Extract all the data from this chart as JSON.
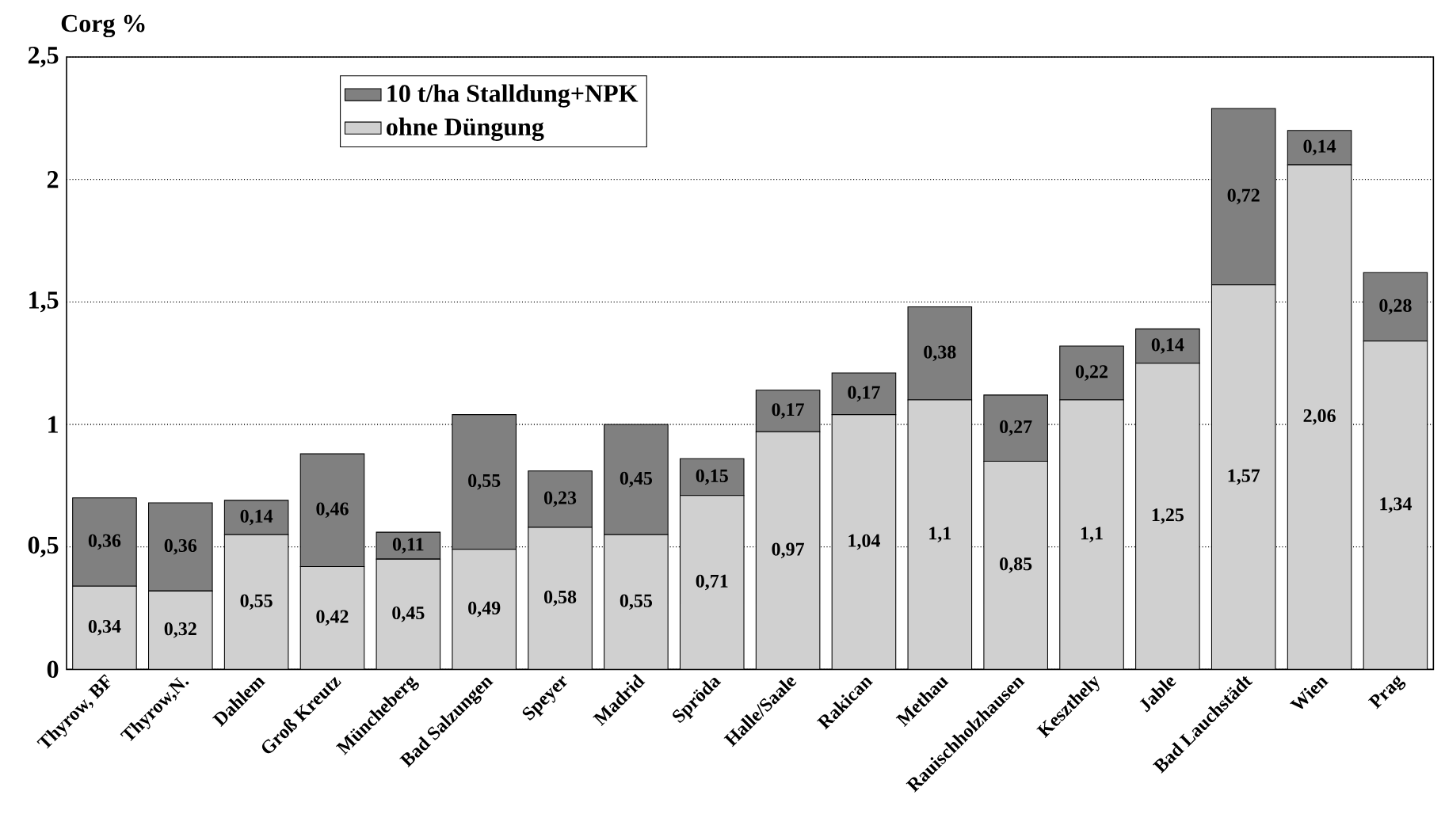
{
  "chart_data": {
    "type": "bar",
    "stacked": true,
    "ylabel": "Corg %",
    "categories": [
      "Thyrow, BF",
      "Thyrow,N.",
      "Dahlem",
      "Groß Kreutz",
      "Müncheberg",
      "Bad Salzungen",
      "Speyer",
      "Madrid",
      "Spröda",
      "Halle/Saale",
      "Rakican",
      "Methau",
      "Rauischholzhausen",
      "Keszthely",
      "Jable",
      "Bad Lauchstädt",
      "Wien",
      "Prag"
    ],
    "series": [
      {
        "name": "ohne Düngung",
        "color": "#d0d0d0",
        "values": [
          0.34,
          0.32,
          0.55,
          0.42,
          0.45,
          0.49,
          0.58,
          0.55,
          0.71,
          0.97,
          1.04,
          1.1,
          0.85,
          1.1,
          1.25,
          1.57,
          2.06,
          1.34
        ],
        "value_labels": [
          "0,34",
          "0,32",
          "0,55",
          "0,42",
          "0,45",
          "0,49",
          "0,58",
          "0,55",
          "0,71",
          "0,97",
          "1,04",
          "1,1",
          "0,85",
          "1,1",
          "1,25",
          "1,57",
          "2,06",
          "1,34"
        ]
      },
      {
        "name": "10 t/ha Stalldung+NPK",
        "color": "#808080",
        "values": [
          0.36,
          0.36,
          0.14,
          0.46,
          0.11,
          0.55,
          0.23,
          0.45,
          0.15,
          0.17,
          0.17,
          0.38,
          0.27,
          0.22,
          0.14,
          0.72,
          0.14,
          0.28
        ],
        "value_labels": [
          "0,36",
          "0,36",
          "0,14",
          "0,46",
          "0,11",
          "0,55",
          "0,23",
          "0,45",
          "0,15",
          "0,17",
          "0,17",
          "0,38",
          "0,27",
          "0,22",
          "0,14",
          "0,72",
          "0,14",
          "0,28"
        ]
      }
    ],
    "ylim": [
      0,
      2.5
    ],
    "yticks": [
      0,
      {
        "value": 0.5,
        "label": "0,5"
      },
      1,
      {
        "value": 1.5,
        "label": "1,5"
      },
      2,
      {
        "value": 2.5,
        "label": "2,5"
      }
    ],
    "grid": "y",
    "legend": "top left"
  }
}
